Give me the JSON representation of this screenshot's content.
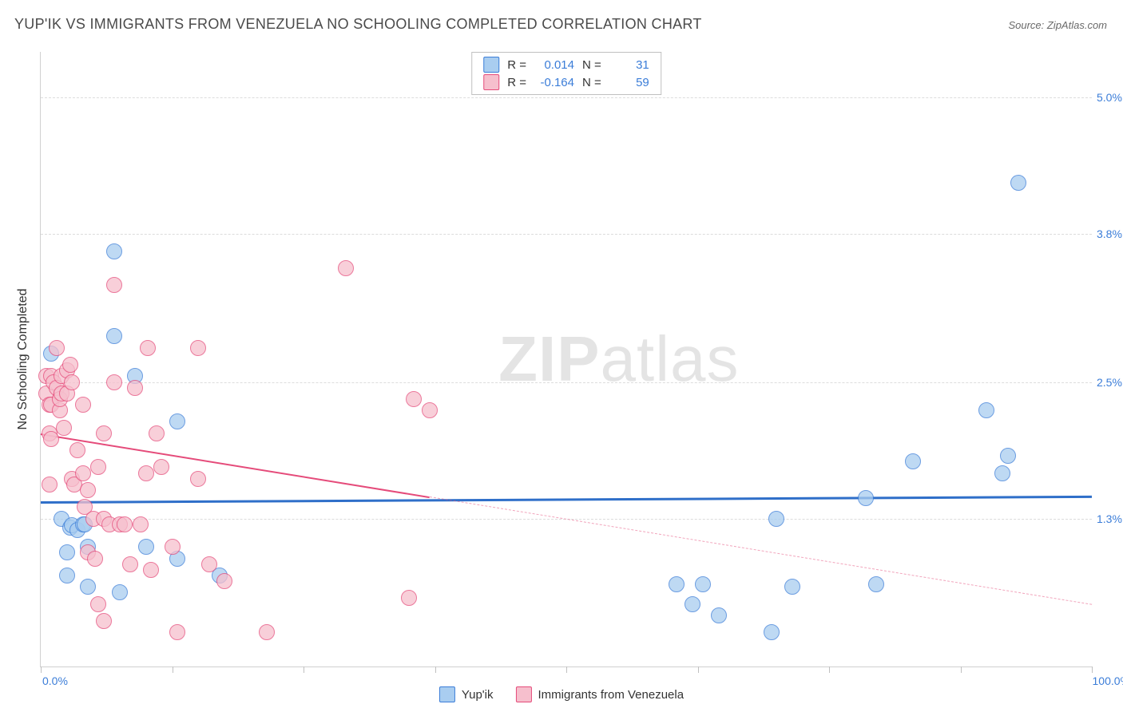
{
  "title": "YUP'IK VS IMMIGRANTS FROM VENEZUELA NO SCHOOLING COMPLETED CORRELATION CHART",
  "source": "Source: ZipAtlas.com",
  "y_axis_label": "No Schooling Completed",
  "watermark_a": "ZIP",
  "watermark_b": "atlas",
  "chart": {
    "type": "scatter",
    "background_color": "#ffffff",
    "grid_color": "#dcdcdc",
    "axis_color": "#d0d0d0",
    "tick_label_color": "#3b7dd8",
    "tick_label_fontsize": 14,
    "title_fontsize": 18,
    "title_color": "#4a4a4a",
    "xlim": [
      0,
      100
    ],
    "ylim": [
      0,
      5.4
    ],
    "y_ticks": [
      {
        "v": 1.3,
        "label": "1.3%"
      },
      {
        "v": 2.5,
        "label": "2.5%"
      },
      {
        "v": 3.8,
        "label": "3.8%"
      },
      {
        "v": 5.0,
        "label": "5.0%"
      }
    ],
    "x_ticks": [
      0,
      12.5,
      25,
      37.5,
      50,
      62.5,
      75,
      87.5,
      100
    ],
    "x_min_label": "0.0%",
    "x_max_label": "100.0%",
    "point_radius": 9,
    "point_border_width": 1.2,
    "series": [
      {
        "key": "A",
        "name": "Yup'ik",
        "fill": "#a9cdf0",
        "stroke": "#3b7dd8",
        "opacity": 0.75,
        "R": "0.014",
        "N": "31",
        "trend": {
          "y_at_x0": 1.45,
          "y_at_x100": 1.5,
          "color": "#2f6fc9",
          "width": 3,
          "dash_from_x": null
        },
        "points": [
          [
            1.0,
            2.75
          ],
          [
            2.0,
            1.3
          ],
          [
            2.5,
            1.0
          ],
          [
            2.5,
            0.8
          ],
          [
            2.8,
            1.22
          ],
          [
            3.0,
            1.24
          ],
          [
            3.5,
            1.2
          ],
          [
            4.0,
            1.25
          ],
          [
            4.2,
            1.25
          ],
          [
            4.5,
            1.05
          ],
          [
            4.5,
            0.7
          ],
          [
            7.0,
            3.65
          ],
          [
            7.0,
            2.9
          ],
          [
            7.5,
            0.65
          ],
          [
            9.0,
            2.55
          ],
          [
            10.0,
            1.05
          ],
          [
            13.0,
            2.15
          ],
          [
            13.0,
            0.95
          ],
          [
            17.0,
            0.8
          ],
          [
            60.5,
            0.72
          ],
          [
            62.0,
            0.55
          ],
          [
            63.0,
            0.72
          ],
          [
            64.5,
            0.45
          ],
          [
            69.5,
            0.3
          ],
          [
            70.0,
            1.3
          ],
          [
            71.5,
            0.7
          ],
          [
            78.5,
            1.48
          ],
          [
            79.5,
            0.72
          ],
          [
            83.0,
            1.8
          ],
          [
            90.0,
            2.25
          ],
          [
            91.5,
            1.7
          ],
          [
            92.0,
            1.85
          ],
          [
            93.0,
            4.25
          ]
        ]
      },
      {
        "key": "B",
        "name": "Immigrants from Venezuela",
        "fill": "#f6bfcd",
        "stroke": "#e54b7a",
        "opacity": 0.75,
        "R": "-0.164",
        "N": "59",
        "trend": {
          "y_at_x0": 2.05,
          "y_at_x100": 0.55,
          "color": "#e54b7a",
          "width": 2.5,
          "dash_from_x": 37
        },
        "points": [
          [
            0.5,
            2.55
          ],
          [
            0.5,
            2.4
          ],
          [
            0.8,
            2.3
          ],
          [
            0.8,
            2.05
          ],
          [
            0.8,
            1.6
          ],
          [
            1.0,
            2.55
          ],
          [
            1.0,
            2.3
          ],
          [
            1.0,
            2.0
          ],
          [
            1.2,
            2.5
          ],
          [
            1.5,
            2.8
          ],
          [
            1.5,
            2.45
          ],
          [
            1.8,
            2.25
          ],
          [
            1.8,
            2.35
          ],
          [
            2.0,
            2.55
          ],
          [
            2.0,
            2.4
          ],
          [
            2.2,
            2.1
          ],
          [
            2.5,
            2.6
          ],
          [
            2.5,
            2.4
          ],
          [
            2.8,
            2.65
          ],
          [
            3.0,
            2.5
          ],
          [
            3.0,
            1.65
          ],
          [
            3.2,
            1.6
          ],
          [
            3.5,
            1.9
          ],
          [
            4.0,
            2.3
          ],
          [
            4.0,
            1.7
          ],
          [
            4.2,
            1.4
          ],
          [
            4.5,
            1.55
          ],
          [
            4.5,
            1.0
          ],
          [
            5.0,
            1.3
          ],
          [
            5.2,
            0.95
          ],
          [
            5.5,
            1.75
          ],
          [
            5.5,
            0.55
          ],
          [
            6.0,
            2.05
          ],
          [
            6.0,
            1.3
          ],
          [
            6.0,
            0.4
          ],
          [
            6.5,
            1.25
          ],
          [
            7.0,
            3.35
          ],
          [
            7.0,
            2.5
          ],
          [
            7.5,
            1.25
          ],
          [
            8.0,
            1.25
          ],
          [
            8.5,
            0.9
          ],
          [
            9.0,
            2.45
          ],
          [
            9.5,
            1.25
          ],
          [
            10.0,
            1.7
          ],
          [
            10.2,
            2.8
          ],
          [
            10.5,
            0.85
          ],
          [
            11.0,
            2.05
          ],
          [
            11.5,
            1.75
          ],
          [
            12.5,
            1.05
          ],
          [
            13.0,
            0.3
          ],
          [
            15.0,
            2.8
          ],
          [
            15.0,
            1.65
          ],
          [
            16.0,
            0.9
          ],
          [
            17.5,
            0.75
          ],
          [
            21.5,
            0.3
          ],
          [
            29.0,
            3.5
          ],
          [
            35.0,
            0.6
          ],
          [
            35.5,
            2.35
          ],
          [
            37.0,
            2.25
          ]
        ]
      }
    ]
  },
  "stats_legend": {
    "R_label": "R  =",
    "N_label": "N  ="
  },
  "bottom_legend_label_a": "Yup'ik",
  "bottom_legend_label_b": "Immigrants from Venezuela"
}
